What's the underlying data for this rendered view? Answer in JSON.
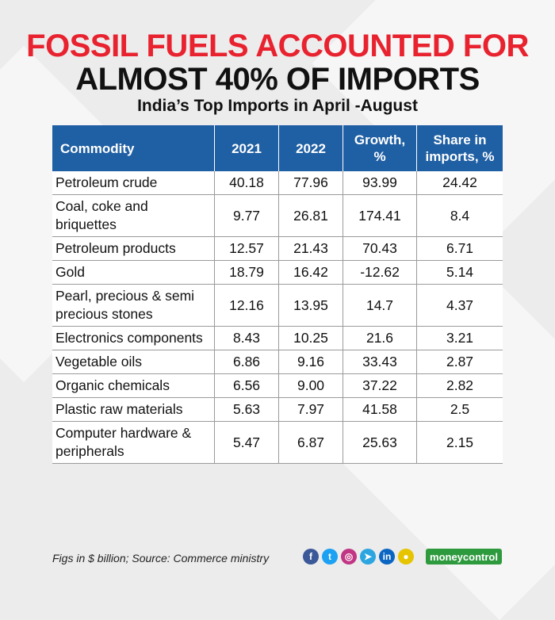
{
  "title_line1": "FOSSIL FUELS ACCOUNTED FOR",
  "title_line2": "ALMOST 40% OF IMPORTS",
  "subtitle": "India’s Top Imports in April -August",
  "chart_data": {
    "type": "table",
    "columns": [
      "Commodity",
      "2021",
      "2022",
      "Growth, %",
      "Share in imports, %"
    ],
    "rows": [
      {
        "commodity": "Petroleum crude",
        "y2021": "40.18",
        "y2022": "77.96",
        "growth": "93.99",
        "share": "24.42"
      },
      {
        "commodity": "Coal, coke and briquettes",
        "y2021": "9.77",
        "y2022": "26.81",
        "growth": "174.41",
        "share": "8.4"
      },
      {
        "commodity": "Petroleum products",
        "y2021": "12.57",
        "y2022": "21.43",
        "growth": "70.43",
        "share": "6.71"
      },
      {
        "commodity": "Gold",
        "y2021": "18.79",
        "y2022": "16.42",
        "growth": "-12.62",
        "share": "5.14"
      },
      {
        "commodity": "Pearl, precious & semi precious stones",
        "y2021": "12.16",
        "y2022": "13.95",
        "growth": "14.7",
        "share": "4.37"
      },
      {
        "commodity": "Electronics components",
        "y2021": "8.43",
        "y2022": "10.25",
        "growth": "21.6",
        "share": "3.21"
      },
      {
        "commodity": "Vegetable oils",
        "y2021": "6.86",
        "y2022": "9.16",
        "growth": "33.43",
        "share": "2.87"
      },
      {
        "commodity": "Organic chemicals",
        "y2021": "6.56",
        "y2022": "9.00",
        "growth": "37.22",
        "share": "2.82"
      },
      {
        "commodity": "Plastic raw materials",
        "y2021": "5.63",
        "y2022": "7.97",
        "growth": "41.58",
        "share": "2.5"
      },
      {
        "commodity": "Computer hardware & peripherals",
        "y2021": "5.47",
        "y2022": "6.87",
        "growth": "25.63",
        "share": "2.15"
      }
    ]
  },
  "footer_note": "Figs in $ billion; Source: Commerce ministry",
  "social_icons": [
    {
      "name": "facebook-icon",
      "glyph": "f",
      "color": "#3b5998"
    },
    {
      "name": "twitter-icon",
      "glyph": "t",
      "color": "#1da1f2"
    },
    {
      "name": "instagram-icon",
      "glyph": "◎",
      "color": "#c13584"
    },
    {
      "name": "telegram-icon",
      "glyph": "➤",
      "color": "#2ca5e0"
    },
    {
      "name": "linkedin-icon",
      "glyph": "in",
      "color": "#0a66c2"
    },
    {
      "name": "snapchat-icon",
      "glyph": "●",
      "color": "#e6c400"
    }
  ],
  "brand": "moneycontrol",
  "colors": {
    "title_red": "#e8232f",
    "header_blue": "#1f5fa3",
    "brand_green": "#2e9a3e"
  }
}
